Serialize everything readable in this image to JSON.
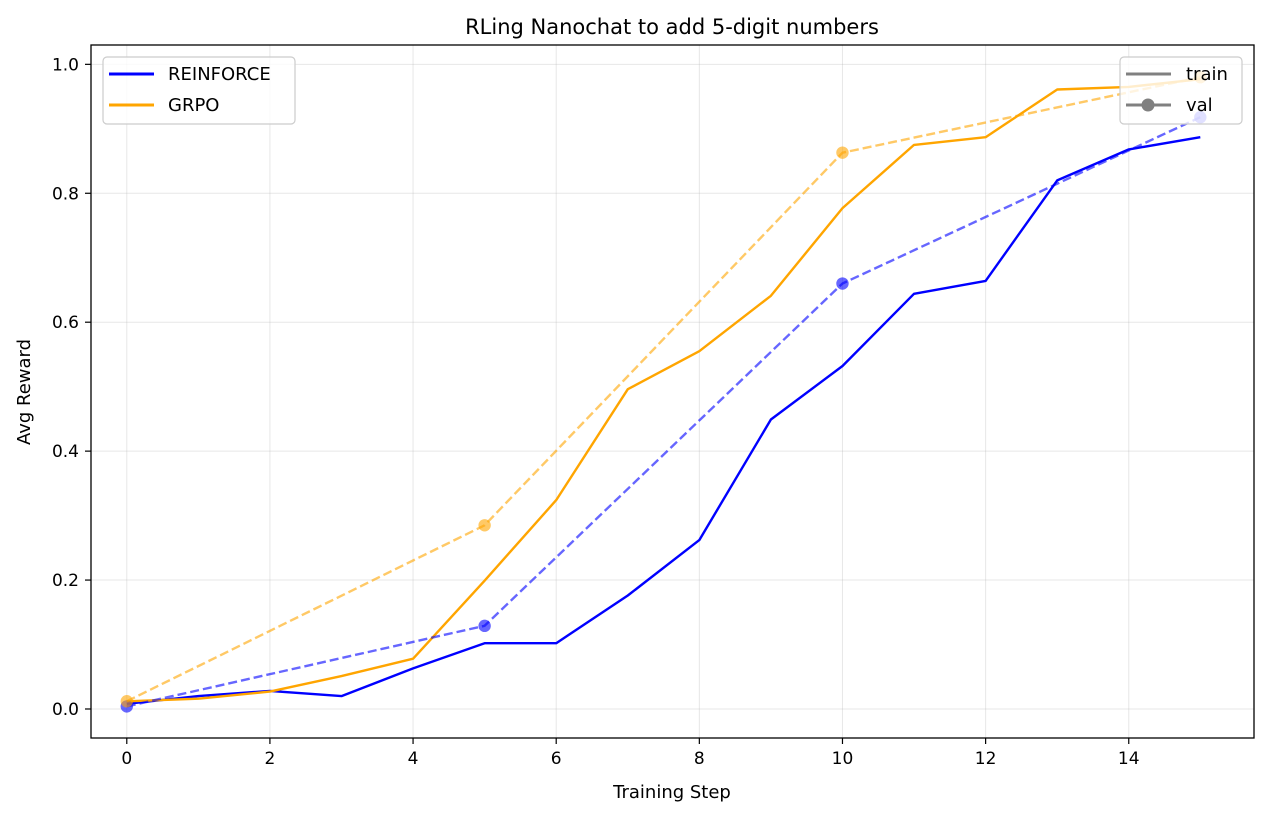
{
  "chart_data": {
    "type": "line",
    "title": "RLing Nanochat to add 5-digit numbers",
    "xlabel": "Training Step",
    "ylabel": "Avg Reward",
    "xlim": [
      -0.5,
      15.75
    ],
    "ylim": [
      -0.045,
      1.03
    ],
    "xticks": [
      0,
      2,
      4,
      6,
      8,
      10,
      12,
      14
    ],
    "yticks": [
      0.0,
      0.2,
      0.4,
      0.6,
      0.8,
      1.0
    ],
    "grid": true,
    "legend_series": {
      "placement": "top-left",
      "entries": [
        "REINFORCE",
        "GRPO"
      ]
    },
    "legend_style": {
      "placement": "top-right",
      "entries": [
        "train",
        "val"
      ]
    },
    "series": [
      {
        "name": "REINFORCE",
        "kind": "train",
        "color": "#0000ff",
        "x": [
          0,
          1,
          2,
          3,
          4,
          5,
          6,
          7,
          8,
          9,
          10,
          11,
          12,
          13,
          14,
          15
        ],
        "y": [
          0.008,
          0.02,
          0.028,
          0.02,
          0.063,
          0.102,
          0.102,
          0.176,
          0.262,
          0.449,
          0.532,
          0.644,
          0.664,
          0.82,
          0.868,
          0.887
        ]
      },
      {
        "name": "GRPO",
        "kind": "train",
        "color": "#ffa500",
        "x": [
          0,
          1,
          2,
          3,
          4,
          5,
          6,
          7,
          8,
          9,
          10,
          11,
          12,
          13,
          14,
          15
        ],
        "y": [
          0.012,
          0.016,
          0.027,
          0.051,
          0.078,
          0.199,
          0.324,
          0.496,
          0.555,
          0.641,
          0.777,
          0.875,
          0.887,
          0.961,
          0.965,
          0.977
        ]
      },
      {
        "name": "REINFORCE",
        "kind": "val",
        "color": "#0000ff",
        "x": [
          0,
          5,
          10,
          15
        ],
        "y": [
          0.004,
          0.129,
          0.66,
          0.918
        ]
      },
      {
        "name": "GRPO",
        "kind": "val",
        "color": "#ffa500",
        "x": [
          0,
          5,
          10,
          15
        ],
        "y": [
          0.012,
          0.285,
          0.863,
          0.98
        ]
      }
    ]
  }
}
